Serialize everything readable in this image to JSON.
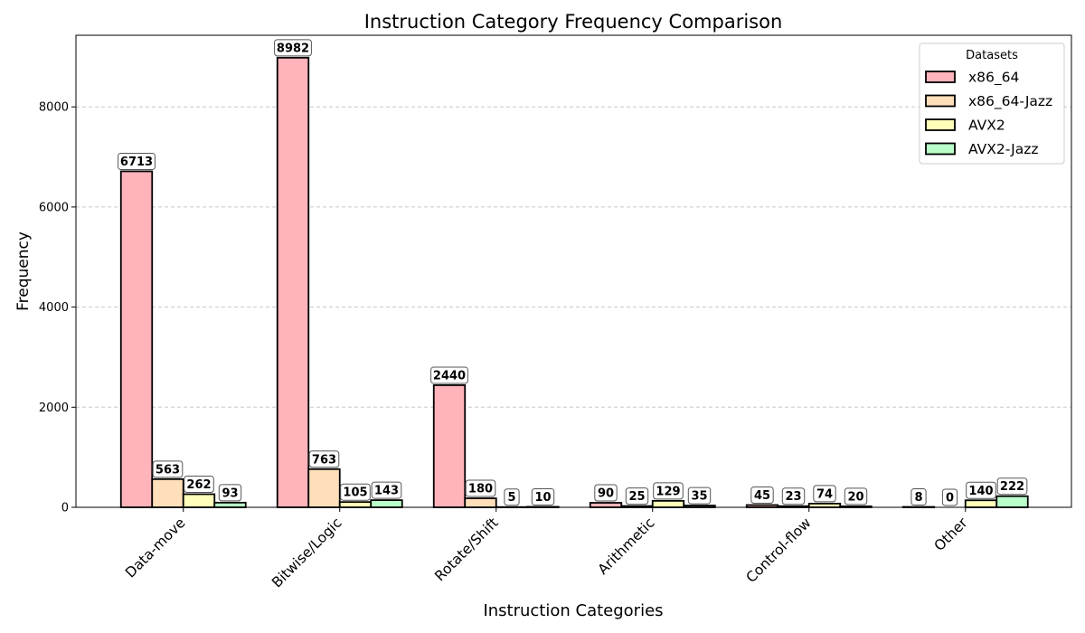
{
  "chart_data": {
    "type": "bar",
    "title": "Instruction Category Frequency Comparison",
    "xlabel": "Instruction Categories",
    "ylabel": "Frequency",
    "categories": [
      "Data-move",
      "Bitwise/Logic",
      "Rotate/Shift",
      "Arithmetic",
      "Control-flow",
      "Other"
    ],
    "series": [
      {
        "name": "x86_64",
        "color": "#ffb3ba",
        "values": [
          6713,
          8982,
          2440,
          90,
          45,
          8
        ]
      },
      {
        "name": "x86_64-Jazz",
        "color": "#ffdfba",
        "values": [
          563,
          763,
          180,
          25,
          23,
          0
        ]
      },
      {
        "name": "AVX2",
        "color": "#ffffba",
        "values": [
          262,
          105,
          5,
          129,
          74,
          140
        ]
      },
      {
        "name": "AVX2-Jazz",
        "color": "#baffc9",
        "values": [
          93,
          143,
          10,
          35,
          20,
          222
        ]
      }
    ],
    "ylim": [
      0,
      9431
    ],
    "yticks": [
      0,
      2000,
      4000,
      6000,
      8000
    ],
    "grid": "y-dashed",
    "legend": {
      "title": "Datasets",
      "placement": "top-right"
    }
  }
}
